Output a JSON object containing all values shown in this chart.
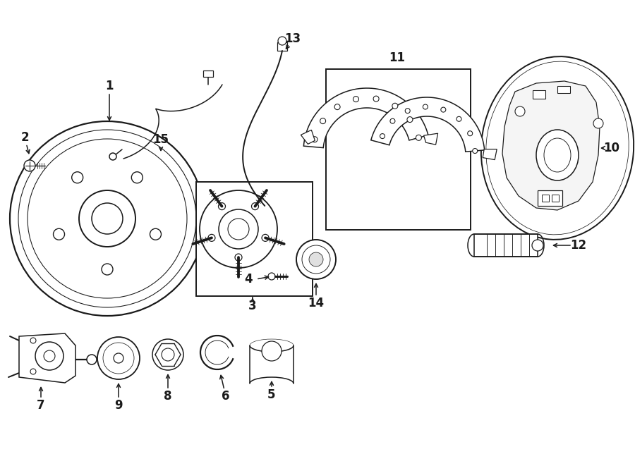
{
  "bg_color": "#ffffff",
  "line_color": "#1a1a1a",
  "fig_width": 9.0,
  "fig_height": 6.61,
  "dpi": 100,
  "lw": 1.1
}
